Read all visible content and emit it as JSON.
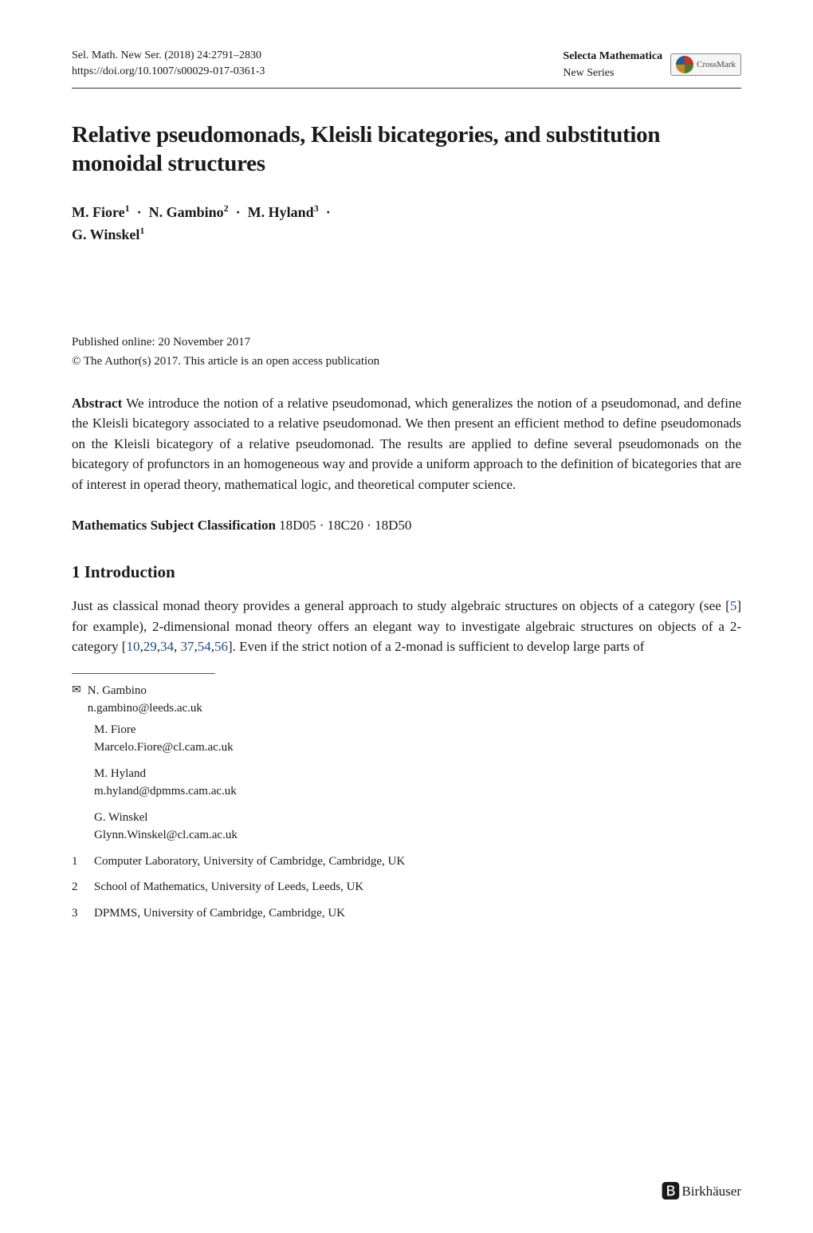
{
  "header": {
    "journal_ref": "Sel. Math. New Ser. (2018) 24:2791–2830",
    "doi": "https://doi.org/10.1007/s00029-017-0361-3",
    "journal_name": "Selecta Mathematica",
    "journal_series": "New Series",
    "crossmark_label": "CrossMark"
  },
  "title": "Relative pseudomonads, Kleisli bicategories, and substitution monoidal structures",
  "authors_line1": "M. Fiore¹ · N. Gambino² · M. Hyland³ ·",
  "authors_line2": "G. Winskel¹",
  "pub_online": "Published online: 20 November 2017",
  "copyright": "© The Author(s) 2017. This article is an open access publication",
  "abstract": {
    "label": "Abstract",
    "text": "We introduce the notion of a relative pseudomonad, which generalizes the notion of a pseudomonad, and define the Kleisli bicategory associated to a relative pseudomonad. We then present an efficient method to define pseudomonads on the Kleisli bicategory of a relative pseudomonad. The results are applied to define several pseudomonads on the bicategory of profunctors in an homogeneous way and provide a uniform approach to the definition of bicategories that are of interest in operad theory, mathematical logic, and theoretical computer science."
  },
  "msc": {
    "label": "Mathematics Subject Classification",
    "codes": "18D05 · 18C20 · 18D50"
  },
  "section1": {
    "heading": "1 Introduction",
    "para_pre": "Just as classical monad theory provides a general approach to study algebraic structures on objects of a category (see [",
    "ref1": "5",
    "para_mid1": "] for example), 2-dimensional monad theory offers an elegant way to investigate algebraic structures on objects of a 2-category [",
    "ref2": "10",
    "sep1": ",",
    "ref3": "29",
    "sep2": ",",
    "ref4": "34",
    "sep3": ", ",
    "ref5": "37",
    "sep4": ",",
    "ref6": "54",
    "sep5": ",",
    "ref7": "56",
    "para_end": "]. Even if the strict notion of a 2-monad is sufficient to develop large parts of"
  },
  "corresponding": {
    "name": "N. Gambino",
    "email": "n.gambino@leeds.ac.uk"
  },
  "author_contacts": [
    {
      "name": "M. Fiore",
      "email": "Marcelo.Fiore@cl.cam.ac.uk"
    },
    {
      "name": "M. Hyland",
      "email": "m.hyland@dpmms.cam.ac.uk"
    },
    {
      "name": "G. Winskel",
      "email": "Glynn.Winskel@cl.cam.ac.uk"
    }
  ],
  "affiliations": [
    {
      "num": "1",
      "text": "Computer Laboratory, University of Cambridge, Cambridge, UK"
    },
    {
      "num": "2",
      "text": "School of Mathematics, University of Leeds, Leeds, UK"
    },
    {
      "num": "3",
      "text": "DPMMS, University of Cambridge, Cambridge, UK"
    }
  ],
  "publisher": "Birkhäuser",
  "colors": {
    "text": "#1a1a1a",
    "link": "#1a4b8c",
    "rule": "#333333",
    "background": "#ffffff"
  },
  "typography": {
    "body_fontsize_pt": 11,
    "title_fontsize_pt": 18,
    "header_fontsize_pt": 9,
    "font_family": "serif"
  }
}
